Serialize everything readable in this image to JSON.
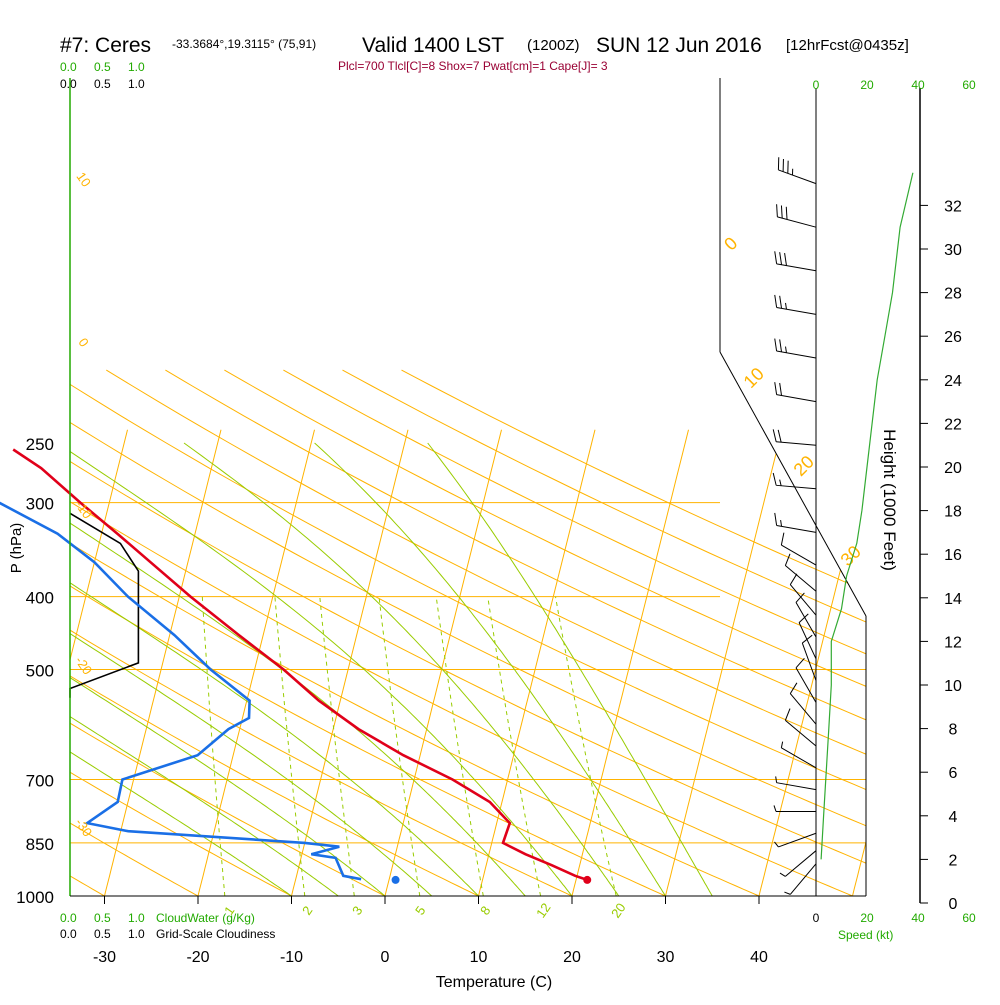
{
  "header": {
    "station": "#7: Ceres",
    "coords": "-33.3684°,19.3115° (75,91)",
    "valid": "Valid 1400 LST",
    "utc": "(1200Z)",
    "date": "SUN 12 Jun 2016",
    "forecast": "[12hrFcst@0435z]",
    "indices": "Plcl=700 Tlcl[C]=8 Shox=7 Pwat[cm]=1 Cape[J]= 3"
  },
  "cloud_scale": {
    "green_ticks": [
      "0.0",
      "0.5",
      "1.0"
    ],
    "black_ticks": [
      "0.0",
      "0.5",
      "1.0"
    ],
    "bottom_green_label": "CloudWater (g/Kg)",
    "bottom_black_label": "Grid-Scale Cloudiness"
  },
  "axes": {
    "ylabel": "P (hPa)",
    "xlabel": "Temperature (C)",
    "right_label": "Height (1000 Feet)",
    "speed_label": "Speed (kt)"
  },
  "colors": {
    "isobar": "#ffb300",
    "isotherm": "#ffb300",
    "dry_adiabat": "#ffb300",
    "moist_adiabat": "#99cc00",
    "mixing_ratio": "#99cc00",
    "temperature": "#e0001a",
    "dewpoint": "#1a6fe6",
    "cloud": "#000000",
    "wind_speed": "#33aa33",
    "header_indices": "#990033",
    "green_text": "#22aa00"
  },
  "chart_data": {
    "type": "skew-t",
    "pressure_levels": [
      "250",
      "300",
      "400",
      "500",
      "700",
      "850",
      "1000"
    ],
    "temperature_ticks": [
      "-30",
      "-20",
      "-10",
      "0",
      "10",
      "20",
      "30",
      "40"
    ],
    "height_ticks_kft": [
      "0",
      "2",
      "4",
      "6",
      "8",
      "10",
      "12",
      "14",
      "16",
      "18",
      "20",
      "22",
      "24",
      "26",
      "28",
      "30",
      "32"
    ],
    "mixing_ratio_labels": [
      "1",
      "2",
      "3",
      "5",
      "8",
      "12",
      "20"
    ],
    "dry_adiabat_labels_left": [
      "10",
      "0",
      "-10",
      "-20",
      "-30"
    ],
    "upper_labels": [
      "0",
      "10",
      "20",
      "30"
    ],
    "speed_ticks_top": [
      "0",
      "20",
      "40",
      "60"
    ],
    "speed_ticks_bottom": [
      "0",
      "20",
      "40",
      "60"
    ],
    "temperature": [
      {
        "p": 255,
        "t": -51.7
      },
      {
        "p": 270,
        "t": -48.2
      },
      {
        "p": 300,
        "t": -43.1
      },
      {
        "p": 330,
        "t": -38.3
      },
      {
        "p": 360,
        "t": -34.0
      },
      {
        "p": 400,
        "t": -28.8
      },
      {
        "p": 450,
        "t": -22.6
      },
      {
        "p": 500,
        "t": -16.9
      },
      {
        "p": 550,
        "t": -12.3
      },
      {
        "p": 600,
        "t": -7.3
      },
      {
        "p": 650,
        "t": -1.8
      },
      {
        "p": 700,
        "t": 4.1
      },
      {
        "p": 750,
        "t": 8.7
      },
      {
        "p": 800,
        "t": 11.4
      },
      {
        "p": 850,
        "t": 11.2
      },
      {
        "p": 880,
        "t": 13.9
      },
      {
        "p": 910,
        "t": 17.0
      },
      {
        "p": 940,
        "t": 19.8
      },
      {
        "p": 952,
        "t": 21.2
      }
    ],
    "dewpoint": [
      {
        "p": 255,
        "t": -59.0
      },
      {
        "p": 300,
        "t": -51.8
      },
      {
        "p": 330,
        "t": -44.7
      },
      {
        "p": 360,
        "t": -40.0
      },
      {
        "p": 400,
        "t": -35.5
      },
      {
        "p": 450,
        "t": -29.5
      },
      {
        "p": 500,
        "t": -24.7
      },
      {
        "p": 550,
        "t": -19.7
      },
      {
        "p": 580,
        "t": -19.3
      },
      {
        "p": 600,
        "t": -21.2
      },
      {
        "p": 650,
        "t": -23.8
      },
      {
        "p": 700,
        "t": -31.2
      },
      {
        "p": 750,
        "t": -31.1
      },
      {
        "p": 800,
        "t": -33.8
      },
      {
        "p": 820,
        "t": -29.2
      },
      {
        "p": 850,
        "t": -10.0
      },
      {
        "p": 860,
        "t": -6.2
      },
      {
        "p": 880,
        "t": -9.0
      },
      {
        "p": 890,
        "t": -6.3
      },
      {
        "p": 940,
        "t": -5.0
      },
      {
        "p": 950,
        "t": -3.0
      },
      {
        "p": 952,
        "t": 0.7
      }
    ],
    "cloudiness": [
      {
        "p": 310,
        "c": 0.0
      },
      {
        "p": 340,
        "c": 0.7
      },
      {
        "p": 370,
        "c": 0.95
      },
      {
        "p": 490,
        "c": 0.95
      },
      {
        "p": 530,
        "c": 0.0
      },
      {
        "p": 545,
        "c": 0.0
      }
    ],
    "wind_speed_profile": [
      {
        "z": 33.5,
        "s": 38
      },
      {
        "z": 31,
        "s": 33
      },
      {
        "z": 28,
        "s": 30
      },
      {
        "z": 26,
        "s": 27
      },
      {
        "z": 24,
        "s": 24
      },
      {
        "z": 22,
        "s": 22
      },
      {
        "z": 20,
        "s": 20
      },
      {
        "z": 18,
        "s": 18
      },
      {
        "z": 16.5,
        "s": 16
      },
      {
        "z": 15,
        "s": 12
      },
      {
        "z": 13.5,
        "s": 10
      },
      {
        "z": 12,
        "s": 6
      },
      {
        "z": 10,
        "s": 6
      },
      {
        "z": 8,
        "s": 5
      },
      {
        "z": 6,
        "s": 4
      },
      {
        "z": 4,
        "s": 3
      },
      {
        "z": 2,
        "s": 2
      }
    ],
    "wind_barbs": [
      {
        "z": 33,
        "dir": 290,
        "spd": 35
      },
      {
        "z": 31,
        "dir": 285,
        "spd": 30
      },
      {
        "z": 29,
        "dir": 280,
        "spd": 30
      },
      {
        "z": 27,
        "dir": 280,
        "spd": 25
      },
      {
        "z": 25,
        "dir": 280,
        "spd": 25
      },
      {
        "z": 23,
        "dir": 280,
        "spd": 20
      },
      {
        "z": 21,
        "dir": 275,
        "spd": 20
      },
      {
        "z": 19,
        "dir": 275,
        "spd": 15
      },
      {
        "z": 17,
        "dir": 280,
        "spd": 15
      },
      {
        "z": 15.5,
        "dir": 300,
        "spd": 10
      },
      {
        "z": 14.3,
        "dir": 310,
        "spd": 10
      },
      {
        "z": 13.2,
        "dir": 320,
        "spd": 10
      },
      {
        "z": 12.2,
        "dir": 330,
        "spd": 10
      },
      {
        "z": 11.2,
        "dir": 335,
        "spd": 10
      },
      {
        "z": 10.2,
        "dir": 340,
        "spd": 10
      },
      {
        "z": 9.2,
        "dir": 330,
        "spd": 10
      },
      {
        "z": 8.2,
        "dir": 320,
        "spd": 10
      },
      {
        "z": 7.2,
        "dir": 310,
        "spd": 10
      },
      {
        "z": 6.2,
        "dir": 300,
        "spd": 5
      },
      {
        "z": 5.2,
        "dir": 280,
        "spd": 5
      },
      {
        "z": 4.2,
        "dir": 270,
        "spd": 5
      },
      {
        "z": 3.2,
        "dir": 250,
        "spd": 5
      },
      {
        "z": 2.4,
        "dir": 230,
        "spd": 5
      },
      {
        "z": 1.8,
        "dir": 220,
        "spd": 5
      }
    ]
  }
}
